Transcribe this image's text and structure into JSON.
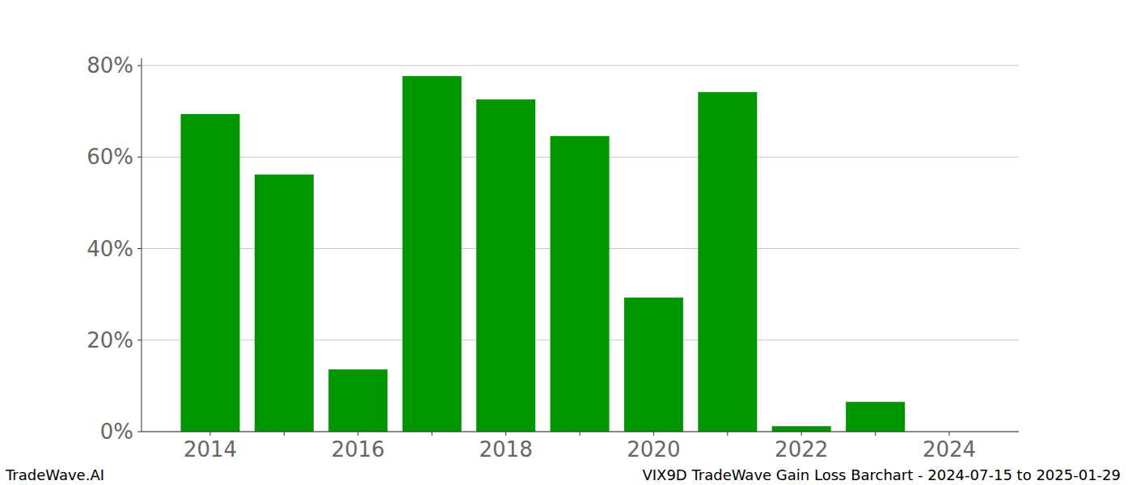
{
  "chart_data": {
    "type": "bar",
    "title": "VIX9D TradeWave Gain Loss Barchart - 2024-07-15 to 2025-01-29",
    "source": "TradeWave.AI",
    "categories": [
      "2014",
      null,
      "2016",
      null,
      "2018",
      null,
      "2020",
      null,
      "2022",
      null,
      "2024"
    ],
    "values": [
      69.4,
      56.2,
      13.6,
      77.7,
      72.6,
      64.6,
      29.3,
      74.2,
      1.2,
      6.5,
      0
    ],
    "color": "#009600",
    "ylim": [
      0,
      81.6
    ],
    "yticks": [
      {
        "value": 0,
        "label": "0%"
      },
      {
        "value": 20,
        "label": "20%"
      },
      {
        "value": 40,
        "label": "40%"
      },
      {
        "value": 60,
        "label": "60%"
      },
      {
        "value": 80,
        "label": "80%"
      }
    ],
    "grid": true
  }
}
